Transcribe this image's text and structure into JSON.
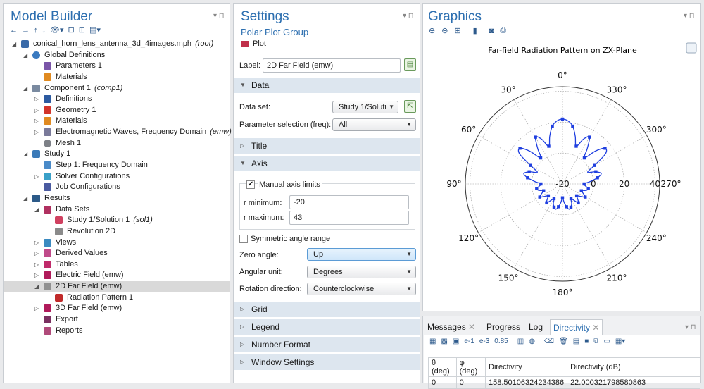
{
  "model_builder": {
    "title": "Model Builder",
    "tree": [
      {
        "label": "conical_horn_lens_antenna_3d_4images.mph",
        "tag": "(root)",
        "level": 0,
        "exp": "down",
        "icon": "root-icon"
      },
      {
        "label": "Global Definitions",
        "tag": "",
        "level": 1,
        "exp": "down",
        "icon": "globe-icon"
      },
      {
        "label": "Parameters 1",
        "tag": "",
        "level": 2,
        "exp": "",
        "icon": "parameters-icon"
      },
      {
        "label": "Materials",
        "tag": "",
        "level": 2,
        "exp": "",
        "icon": "materials-icon"
      },
      {
        "label": "Component 1",
        "tag": "(comp1)",
        "level": 1,
        "exp": "down",
        "icon": "component-icon"
      },
      {
        "label": "Definitions",
        "tag": "",
        "level": 2,
        "exp": "right",
        "icon": "definitions-icon"
      },
      {
        "label": "Geometry 1",
        "tag": "",
        "level": 2,
        "exp": "right",
        "icon": "geometry-icon"
      },
      {
        "label": "Materials",
        "tag": "",
        "level": 2,
        "exp": "right",
        "icon": "materials-icon"
      },
      {
        "label": "Electromagnetic Waves, Frequency Domain",
        "tag": "(emw)",
        "level": 2,
        "exp": "right",
        "icon": "emw-icon"
      },
      {
        "label": "Mesh 1",
        "tag": "",
        "level": 2,
        "exp": "",
        "icon": "mesh-icon"
      },
      {
        "label": "Study 1",
        "tag": "",
        "level": 1,
        "exp": "down",
        "icon": "study-icon"
      },
      {
        "label": "Step 1: Frequency Domain",
        "tag": "",
        "level": 2,
        "exp": "",
        "icon": "step-icon"
      },
      {
        "label": "Solver Configurations",
        "tag": "",
        "level": 2,
        "exp": "right",
        "icon": "solver-icon"
      },
      {
        "label": "Job Configurations",
        "tag": "",
        "level": 2,
        "exp": "",
        "icon": "job-icon"
      },
      {
        "label": "Results",
        "tag": "",
        "level": 1,
        "exp": "down",
        "icon": "results-icon"
      },
      {
        "label": "Data Sets",
        "tag": "",
        "level": 2,
        "exp": "down",
        "icon": "datasets-icon"
      },
      {
        "label": "Study 1/Solution 1",
        "tag": "(sol1)",
        "level": 3,
        "exp": "",
        "icon": "solution-icon"
      },
      {
        "label": "Revolution 2D",
        "tag": "",
        "level": 3,
        "exp": "",
        "icon": "revolution-icon"
      },
      {
        "label": "Views",
        "tag": "",
        "level": 2,
        "exp": "right",
        "icon": "views-icon"
      },
      {
        "label": "Derived Values",
        "tag": "",
        "level": 2,
        "exp": "right",
        "icon": "derived-icon"
      },
      {
        "label": "Tables",
        "tag": "",
        "level": 2,
        "exp": "right",
        "icon": "tables-icon"
      },
      {
        "label": "Electric Field (emw)",
        "tag": "",
        "level": 2,
        "exp": "right",
        "icon": "plot3d-icon"
      },
      {
        "label": "2D Far Field (emw)",
        "tag": "",
        "level": 2,
        "exp": "down",
        "icon": "farfield-icon",
        "selected": true
      },
      {
        "label": "Radiation Pattern 1",
        "tag": "",
        "level": 3,
        "exp": "",
        "icon": "radiation-icon"
      },
      {
        "label": "3D Far Field (emw)",
        "tag": "",
        "level": 2,
        "exp": "right",
        "icon": "plot3d-icon"
      },
      {
        "label": "Export",
        "tag": "",
        "level": 2,
        "exp": "",
        "icon": "export-icon"
      },
      {
        "label": "Reports",
        "tag": "",
        "level": 2,
        "exp": "",
        "icon": "reports-icon"
      }
    ]
  },
  "settings": {
    "title": "Settings",
    "subtitle": "Polar Plot Group",
    "plot_button": "Plot",
    "label_caption": "Label:",
    "label_value": "2D Far Field (emw)",
    "sections": {
      "data": "Data",
      "title": "Title",
      "axis": "Axis",
      "grid": "Grid",
      "legend": "Legend",
      "number_format": "Number Format",
      "window_settings": "Window Settings"
    },
    "data_set_caption": "Data set:",
    "data_set_value": "Study 1/Soluti",
    "param_caption": "Parameter selection (freq):",
    "param_value": "All",
    "manual_axis": "Manual axis limits",
    "rmin_caption": "r minimum:",
    "rmin_value": "-20",
    "rmax_caption": "r maximum:",
    "rmax_value": "43",
    "symmetric": "Symmetric angle range",
    "zero_angle_caption": "Zero angle:",
    "zero_angle_value": "Up",
    "angular_unit_caption": "Angular unit:",
    "angular_unit_value": "Degrees",
    "rotation_caption": "Rotation direction:",
    "rotation_value": "Counterclockwise"
  },
  "graphics": {
    "title": "Graphics",
    "plot_title": "Far-field Radiation Pattern on ZX-Plane"
  },
  "chart_data": {
    "type": "line",
    "title": "Far-field Radiation Pattern on ZX-Plane",
    "angle_labels": [
      "0°",
      "30°",
      "60°",
      "90°",
      "120°",
      "150°",
      "180°",
      "210°",
      "240°",
      "270°",
      "300°",
      "330°"
    ],
    "angles_deg": [
      0,
      30,
      60,
      90,
      120,
      150,
      180,
      210,
      240,
      270,
      300,
      330
    ],
    "r_ticks": [
      "-20",
      "0",
      "20",
      "40"
    ],
    "r_tick_values": [
      -20,
      0,
      20,
      40
    ],
    "rlim": [
      -20,
      43
    ],
    "series": [
      {
        "theta_deg": [
          0,
          5,
          10,
          15,
          20,
          25,
          30,
          35,
          40,
          45,
          50,
          55,
          60,
          65,
          70,
          75,
          80,
          85,
          90,
          95,
          100,
          105,
          110,
          115,
          120,
          125,
          130,
          135,
          140,
          145,
          150,
          155,
          160,
          165,
          170,
          175,
          180,
          185,
          190,
          195,
          200,
          205,
          210,
          215,
          220,
          225,
          230,
          235,
          240,
          245,
          250,
          255,
          260,
          265,
          270,
          275,
          280,
          285,
          290,
          295,
          300,
          305,
          310,
          315,
          320,
          325,
          330,
          335,
          340,
          345,
          350,
          355
        ],
        "r": [
          22,
          21,
          18,
          12,
          6,
          12,
          15,
          8,
          2,
          10,
          16,
          14,
          4,
          -2,
          3,
          6,
          3,
          -2,
          -6,
          -5,
          -3,
          -4,
          -7,
          -5,
          -3,
          -6,
          -8,
          -6,
          -4,
          -7,
          -9,
          -6,
          -4,
          -3,
          -5,
          -8,
          -11,
          -8,
          -5,
          -3,
          -4,
          -6,
          -9,
          -7,
          -4,
          -6,
          -8,
          -6,
          -3,
          -5,
          -7,
          -4,
          -3,
          -5,
          -6,
          -2,
          3,
          6,
          3,
          -2,
          4,
          14,
          16,
          10,
          2,
          8,
          15,
          12,
          6,
          12,
          18,
          21
        ]
      }
    ]
  },
  "messages": {
    "tabs": [
      "Messages",
      "Progress",
      "Log",
      "Directivity"
    ],
    "active_tab": "Directivity",
    "columns": [
      "θ (deg)",
      "φ (deg)",
      "Directivity",
      "Directivity (dB)"
    ],
    "rows": [
      [
        "0",
        "0",
        "158.50106324234386",
        "22.000321798580863"
      ]
    ]
  },
  "colors": {
    "accent": "#2d6fb0",
    "curve": "#1f3fe0",
    "section_bg": "#dde6ef",
    "selected_row": "#d9d9d9"
  }
}
